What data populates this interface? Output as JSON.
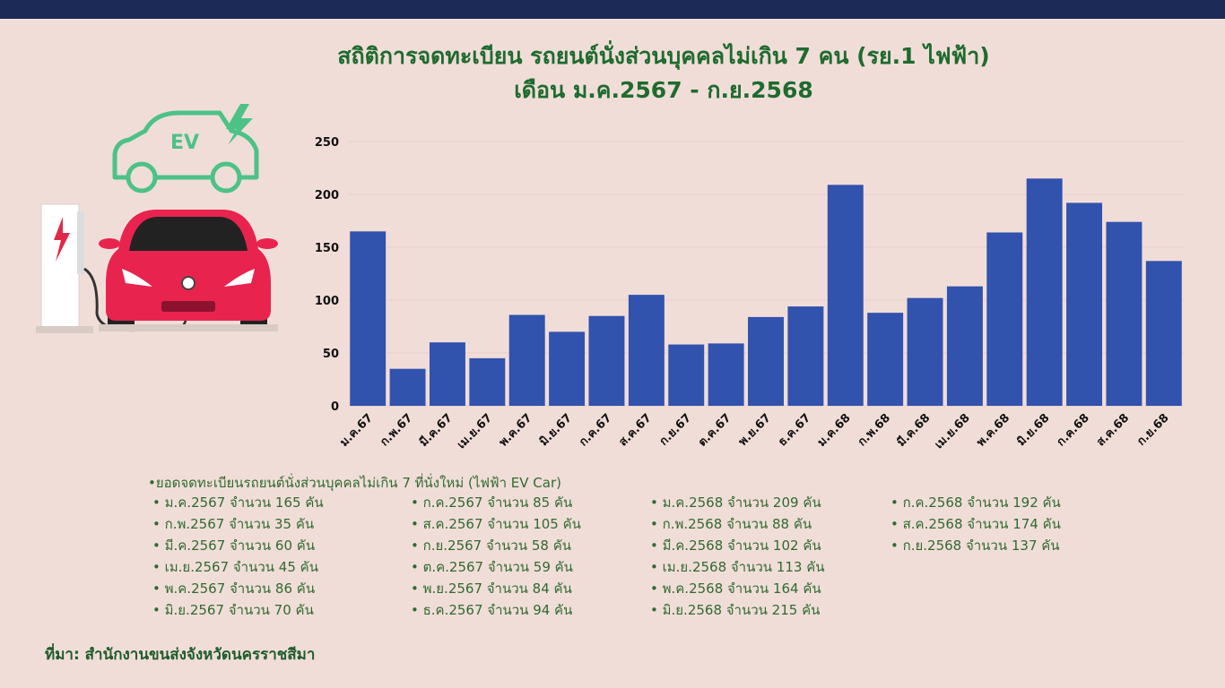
{
  "header": {
    "title_line1": "สถิติการจดทะเบียน รถยนต์นั่งส่วนบุคคลไม่เกิน 7 คน (รย.1 ไฟฟ้า)",
    "title_line2": "เดือน ม.ค.2567 - ก.ย.2568"
  },
  "illustration": {
    "ev_label": "EV",
    "icons": [
      "ev-car-outline-icon",
      "lightning-bolt-icon",
      "charging-station-icon",
      "red-car-icon"
    ]
  },
  "chart_data": {
    "type": "bar",
    "categories": [
      "ม.ค.67",
      "ก.พ.67",
      "มี.ค.67",
      "เม.ย.67",
      "พ.ค.67",
      "มิ.ย.67",
      "ก.ค.67",
      "ส.ค.67",
      "ก.ย.67",
      "ต.ค.67",
      "พ.ย.67",
      "ธ.ค.67",
      "ม.ค.68",
      "ก.พ.68",
      "มี.ค.68",
      "เม.ย.68",
      "พ.ค.68",
      "มิ.ย.68",
      "ก.ค.68",
      "ส.ค.68",
      "ก.ย.68"
    ],
    "values": [
      165,
      35,
      60,
      45,
      86,
      70,
      85,
      105,
      58,
      59,
      84,
      94,
      209,
      88,
      102,
      113,
      164,
      215,
      192,
      174,
      137
    ],
    "ylim": [
      0,
      250
    ],
    "yticks": [
      0,
      50,
      100,
      150,
      200,
      250
    ],
    "bar_color": "#3152ad",
    "grid": true
  },
  "notes": {
    "heading": "•ยอดจดทะเบียนรถยนต์นั่งส่วนบุคคลไม่เกิน 7 ที่นั่งใหม่ (ไฟฟ้า EV Car)",
    "col1": [
      "• ม.ค.2567 จำนวน  165 คัน",
      "• ก.พ.2567 จำนวน   35 คัน",
      "• มี.ค.2567 จำนวน   60 คัน",
      "• เม.ย.2567 จำนวน   45 คัน",
      "• พ.ค.2567 จำนวน   86 คัน",
      "• มิ.ย.2567 จำนวน    70 คัน"
    ],
    "col2": [
      "• ก.ค.2567 จำนวน 85 คัน",
      "• ส.ค.2567 จำนวน 105 คัน",
      "• ก.ย.2567 จำนวน 58 คัน",
      "• ต.ค.2567 จำนวน 59 คัน",
      "• พ.ย.2567 จำนวน 84 คัน",
      "• ธ.ค.2567 จำนวน 94 คัน"
    ],
    "col3": [
      "• ม.ค.2568 จำนวน 209 คัน",
      "• ก.พ.2568 จำนวน   88 คัน",
      "• มี.ค.2568 จำนวน  102 คัน",
      "• เม.ย.2568 จำนวน  113 คัน",
      "• พ.ค.2568 จำนวน  164 คัน",
      "• มิ.ย.2568 จำนวน  215 คัน"
    ],
    "col4": [
      "• ก.ค.2568 จำนวน 192 คัน",
      "• ส.ค.2568 จำนวน 174 คัน",
      "• ก.ย.2568 จำนวน 137 คัน"
    ]
  },
  "footer": {
    "source": "ที่มา: สำนักงานขนส่งจังหวัดนครราชสีมา"
  }
}
